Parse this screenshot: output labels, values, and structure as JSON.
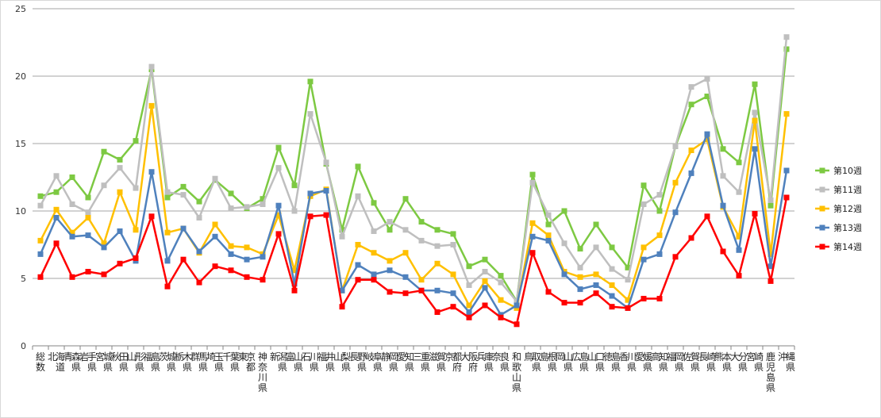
{
  "chart_data": {
    "type": "line",
    "title": "",
    "xlabel": "",
    "ylabel": "",
    "ylim": [
      0,
      25
    ],
    "yticks": [
      0,
      5,
      10,
      15,
      20,
      25
    ],
    "grid": true,
    "legend_position": "right",
    "categories": [
      "総数",
      "北海道",
      "青森県",
      "岩手県",
      "宮城県",
      "秋田県",
      "山形県",
      "福島県",
      "茨城県",
      "栃木県",
      "群馬県",
      "埼玉県",
      "千葉県",
      "東京都",
      "神奈川県",
      "新潟県",
      "富山県",
      "石川県",
      "福井県",
      "山梨県",
      "長野県",
      "岐阜県",
      "静岡県",
      "愛知県",
      "三重県",
      "滋賀県",
      "京都府",
      "大阪府",
      "兵庫県",
      "奈良県",
      "和歌山県",
      "鳥取県",
      "島根県",
      "岡山県",
      "広島県",
      "山口県",
      "徳島県",
      "香川県",
      "愛媛県",
      "高知県",
      "福岡県",
      "佐賀県",
      "長崎県",
      "熊本県",
      "大分県",
      "宮崎県",
      "鹿児島県",
      "沖縄県"
    ],
    "series": [
      {
        "name": "第10週",
        "color": "#7dc942",
        "values": [
          11.1,
          11.4,
          12.5,
          11.0,
          14.4,
          13.8,
          15.2,
          20.5,
          11.0,
          11.8,
          10.7,
          12.3,
          11.3,
          10.2,
          10.9,
          14.7,
          11.9,
          19.6,
          13.5,
          8.6,
          13.3,
          10.6,
          8.6,
          10.9,
          9.2,
          8.6,
          8.3,
          5.9,
          6.4,
          5.2,
          3.3,
          12.7,
          9.0,
          10.0,
          7.2,
          9.0,
          7.3,
          5.8,
          11.9,
          10.0,
          14.8,
          17.9,
          18.5,
          14.6,
          13.6,
          19.4,
          10.4,
          22.0
        ]
      },
      {
        "name": "第11週",
        "color": "#bfbfbf",
        "values": [
          10.4,
          12.6,
          10.5,
          9.9,
          11.9,
          13.2,
          11.7,
          20.7,
          11.4,
          11.2,
          9.5,
          12.4,
          10.2,
          10.3,
          10.5,
          13.2,
          10.0,
          17.2,
          13.6,
          8.1,
          11.1,
          8.5,
          9.2,
          8.6,
          7.8,
          7.4,
          7.5,
          4.5,
          5.5,
          4.7,
          3.3,
          12.1,
          9.7,
          7.6,
          5.8,
          7.3,
          5.7,
          4.9,
          10.5,
          11.2,
          14.8,
          19.2,
          19.8,
          12.6,
          11.4,
          17.3,
          10.8,
          22.9
        ]
      },
      {
        "name": "第12週",
        "color": "#ffc000",
        "values": [
          7.8,
          10.1,
          8.4,
          9.5,
          7.6,
          11.4,
          8.6,
          17.8,
          8.4,
          8.7,
          6.9,
          9.0,
          7.4,
          7.3,
          6.8,
          9.7,
          5.6,
          11.1,
          11.6,
          4.1,
          7.5,
          6.9,
          6.3,
          6.9,
          4.9,
          6.1,
          5.3,
          3.0,
          4.8,
          3.4,
          2.8,
          9.1,
          8.2,
          5.5,
          5.1,
          5.3,
          4.5,
          3.4,
          7.3,
          8.2,
          12.1,
          14.5,
          15.3,
          10.3,
          8.1,
          16.7,
          6.8,
          17.2
        ]
      },
      {
        "name": "第13週",
        "color": "#4f81bd",
        "values": [
          6.8,
          9.5,
          8.1,
          8.2,
          7.3,
          8.5,
          6.3,
          12.9,
          6.3,
          8.7,
          7.0,
          8.1,
          6.8,
          6.4,
          6.6,
          10.4,
          4.6,
          11.3,
          11.5,
          4.1,
          6.0,
          5.3,
          5.6,
          5.1,
          4.1,
          4.1,
          3.9,
          2.5,
          4.3,
          2.3,
          3.0,
          8.1,
          7.8,
          5.3,
          4.2,
          4.5,
          3.7,
          2.8,
          6.4,
          6.8,
          9.9,
          12.8,
          15.7,
          10.4,
          7.1,
          14.6,
          5.9,
          13.0
        ]
      },
      {
        "name": "第14週",
        "color": "#ff0000",
        "values": [
          5.1,
          7.6,
          5.1,
          5.5,
          5.3,
          6.1,
          6.5,
          9.6,
          4.4,
          6.4,
          4.7,
          5.9,
          5.6,
          5.1,
          4.9,
          8.3,
          4.1,
          9.6,
          9.7,
          2.9,
          4.9,
          4.9,
          4.0,
          3.9,
          4.1,
          2.5,
          2.9,
          2.1,
          3.0,
          2.1,
          1.6,
          6.9,
          4.0,
          3.2,
          3.2,
          3.9,
          2.9,
          2.8,
          3.5,
          3.5,
          6.6,
          8.0,
          9.6,
          7.0,
          5.2,
          9.8,
          4.8,
          11.0
        ]
      }
    ]
  }
}
